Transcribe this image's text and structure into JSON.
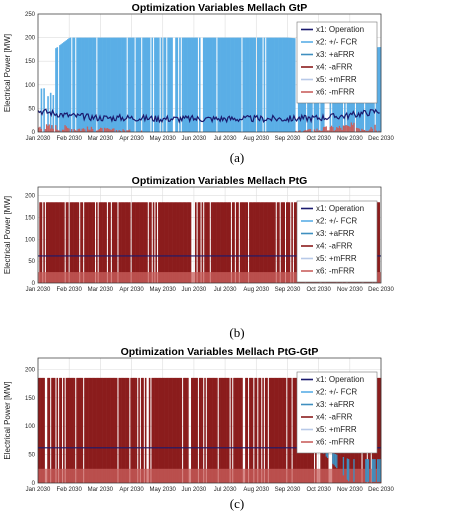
{
  "colors": {
    "operation": "#1a1a6e",
    "fcr": "#5aaee6",
    "afrr_pos": "#3f8fbf",
    "afrr_neg": "#8b1c1c",
    "mfrr_pos": "#b7c9e8",
    "mfrr_neg": "#c9605e"
  },
  "chart_data": [
    {
      "type": "area",
      "title": "Optimization Variables Mellach GtP",
      "ylabel": "Electrical Power [MW]",
      "xlabel": "",
      "panel_label": "(a)",
      "xticks": [
        "Jan 2030",
        "Feb 2030",
        "Mar 2030",
        "Apr 2030",
        "May 2030",
        "Jun 2030",
        "Jul 2030",
        "Aug 2030",
        "Sep 2030",
        "Oct 2030",
        "Nov 2030",
        "Dec 2030"
      ],
      "yticks": [
        0,
        50,
        100,
        150,
        200,
        250
      ],
      "ylim": [
        0,
        250
      ],
      "grid": true,
      "legend_position": "right",
      "series": [
        {
          "name": "x1: Operation",
          "values_by_month": [
            45,
            35,
            30,
            30,
            28,
            28,
            28,
            28,
            28,
            30,
            35,
            45
          ]
        },
        {
          "name": "x2: +/- FCR",
          "values_by_month": [
            150,
            200,
            200,
            200,
            200,
            200,
            200,
            200,
            200,
            195,
            175,
            180
          ]
        },
        {
          "name": "x3: +aFRR",
          "values_by_month": [
            0,
            0,
            0,
            0,
            0,
            0,
            0,
            0,
            0,
            0,
            0,
            0
          ]
        },
        {
          "name": "x4: -aFRR",
          "values_by_month": [
            15,
            10,
            10,
            5,
            0,
            0,
            0,
            0,
            0,
            10,
            20,
            25
          ]
        },
        {
          "name": "x5: +mFRR",
          "values_by_month": [
            0,
            0,
            0,
            0,
            0,
            0,
            0,
            0,
            0,
            0,
            0,
            0
          ]
        },
        {
          "name": "x6: -mFRR",
          "values_by_month": [
            20,
            15,
            10,
            5,
            0,
            0,
            0,
            0,
            0,
            10,
            20,
            25
          ]
        }
      ]
    },
    {
      "type": "area",
      "title": "Optimization Variables Mellach PtG",
      "ylabel": "Electrical Power [MW]",
      "xlabel": "",
      "panel_label": "(b)",
      "xticks": [
        "Jan 2030",
        "Feb 2030",
        "Mar 2030",
        "Apr 2030",
        "May 2030",
        "Jun 2030",
        "Jul 2030",
        "Aug 2030",
        "Sep 2030",
        "Oct 2030",
        "Nov 2030",
        "Dec 2030"
      ],
      "yticks": [
        0,
        50,
        100,
        150,
        200
      ],
      "ylim": [
        0,
        220
      ],
      "grid": true,
      "legend_position": "right",
      "series": [
        {
          "name": "x1: Operation",
          "values_by_month": [
            62,
            62,
            62,
            62,
            62,
            62,
            62,
            62,
            62,
            62,
            62,
            62
          ]
        },
        {
          "name": "x2: +/- FCR",
          "values_by_month": [
            0,
            0,
            0,
            0,
            0,
            0,
            0,
            0,
            0,
            0,
            0,
            0
          ]
        },
        {
          "name": "x3: +aFRR",
          "values_by_month": [
            0,
            0,
            0,
            0,
            0,
            0,
            0,
            0,
            0,
            0,
            0,
            0
          ]
        },
        {
          "name": "x4: -aFRR",
          "values_by_month": [
            185,
            185,
            185,
            185,
            185,
            185,
            185,
            185,
            185,
            185,
            185,
            185
          ]
        },
        {
          "name": "x5: +mFRR",
          "values_by_month": [
            0,
            0,
            0,
            0,
            0,
            0,
            0,
            0,
            0,
            0,
            0,
            0
          ]
        },
        {
          "name": "x6: -mFRR",
          "values_by_month": [
            25,
            25,
            25,
            25,
            25,
            25,
            25,
            25,
            25,
            25,
            25,
            25
          ]
        }
      ]
    },
    {
      "type": "area",
      "title": "Optimization Variables Mellach PtG-GtP",
      "ylabel": "Electrical Power [MW]",
      "xlabel": "",
      "panel_label": "(c)",
      "xticks": [
        "Jan 2030",
        "Feb 2030",
        "Mar 2030",
        "Apr 2030",
        "May 2030",
        "Jun 2030",
        "Jul 2030",
        "Aug 2030",
        "Sep 2030",
        "Oct 2030",
        "Nov 2030",
        "Dec 2030"
      ],
      "yticks": [
        0,
        50,
        100,
        150,
        200
      ],
      "ylim": [
        0,
        220
      ],
      "grid": true,
      "legend_position": "right",
      "series": [
        {
          "name": "x1: Operation",
          "values_by_month": [
            62,
            62,
            62,
            62,
            62,
            62,
            62,
            62,
            62,
            62,
            62,
            62
          ]
        },
        {
          "name": "x2: +/- FCR",
          "values_by_month": [
            0,
            0,
            0,
            0,
            0,
            0,
            0,
            0,
            0,
            0,
            0,
            0
          ]
        },
        {
          "name": "x3: +aFRR",
          "values_by_month": [
            0,
            0,
            0,
            0,
            0,
            0,
            0,
            0,
            0,
            0,
            20,
            20
          ]
        },
        {
          "name": "x4: -aFRR",
          "values_by_month": [
            185,
            185,
            185,
            185,
            185,
            185,
            185,
            185,
            185,
            185,
            185,
            185
          ]
        },
        {
          "name": "x5: +mFRR",
          "values_by_month": [
            0,
            0,
            0,
            0,
            0,
            0,
            0,
            0,
            0,
            0,
            25,
            25
          ]
        },
        {
          "name": "x6: -mFRR",
          "values_by_month": [
            25,
            25,
            25,
            25,
            25,
            25,
            25,
            25,
            25,
            25,
            25,
            25
          ]
        }
      ]
    }
  ]
}
